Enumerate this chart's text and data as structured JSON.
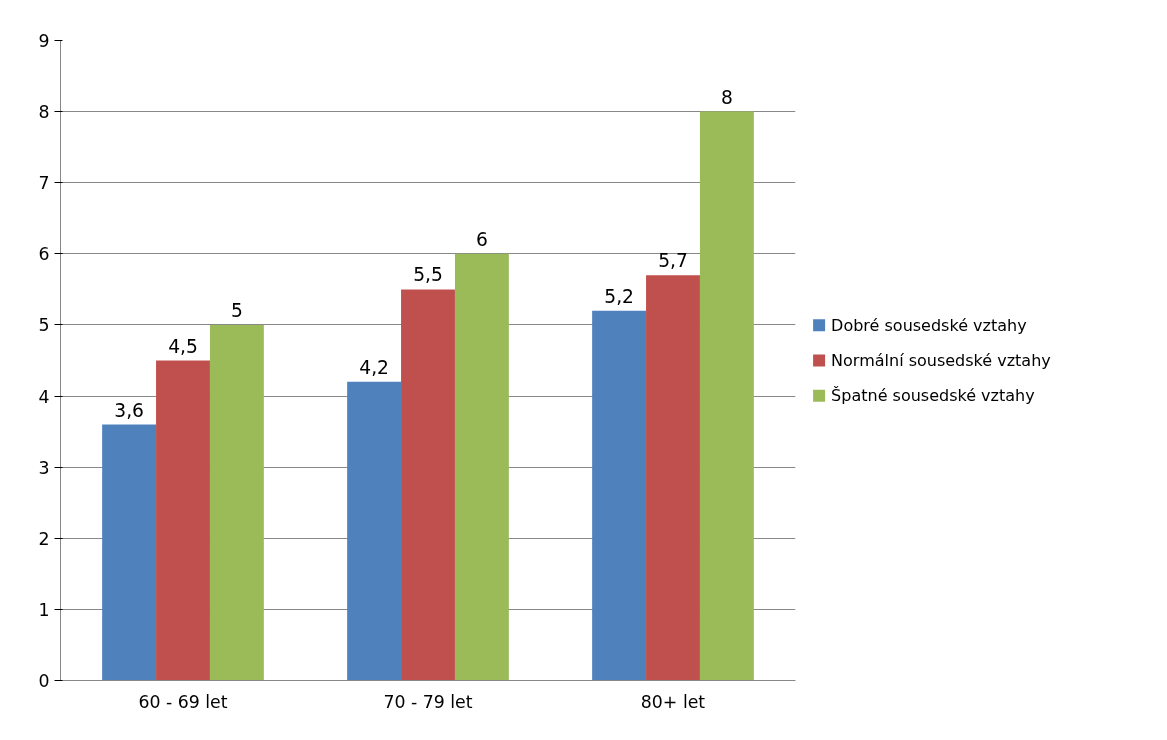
{
  "chart_data": {
    "type": "bar",
    "categories": [
      "60 - 69 let",
      "70 - 79 let",
      "80+ let"
    ],
    "series": [
      {
        "name": "Dobré sousedské vztahy",
        "color": "#4f81bd",
        "values": [
          3.6,
          4.2,
          5.2
        ],
        "value_labels": [
          "3,6",
          "4,2",
          "5,2"
        ]
      },
      {
        "name": "Normální sousedské vztahy",
        "color": "#c0504d",
        "values": [
          4.5,
          5.5,
          5.7
        ],
        "value_labels": [
          "4,5",
          "5,5",
          "5,7"
        ]
      },
      {
        "name": "Špatné sousedské vztahy",
        "color": "#9bbb59",
        "values": [
          5,
          6,
          8
        ],
        "value_labels": [
          "5",
          "6",
          "8"
        ]
      }
    ],
    "ylim": [
      0,
      9
    ],
    "yticks": [
      0,
      1,
      2,
      3,
      4,
      5,
      6,
      7,
      8,
      9
    ],
    "grid": "y",
    "legend": "right"
  }
}
